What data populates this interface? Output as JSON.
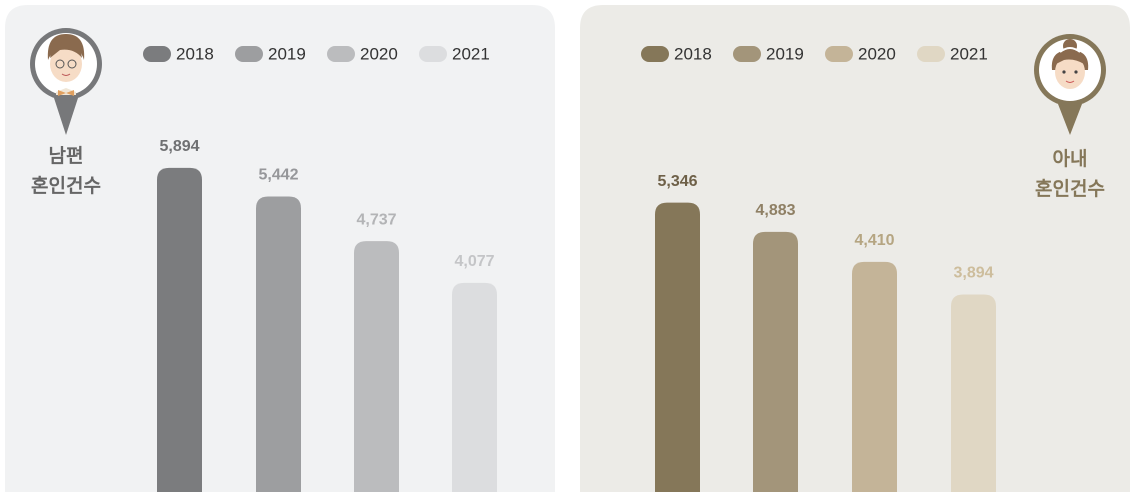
{
  "chart_data": [
    {
      "type": "bar",
      "title": [
        "남편",
        "혼인건수"
      ],
      "series": [
        {
          "name": "2018",
          "color": "#7b7c7e",
          "label_color": "#6f7072",
          "values": [
            5894
          ],
          "value_labels": [
            "5,894"
          ]
        },
        {
          "name": "2019",
          "color": "#9d9ea0",
          "label_color": "#96979a",
          "values": [
            5442
          ],
          "value_labels": [
            "5,442"
          ]
        },
        {
          "name": "2020",
          "color": "#bbbcbe",
          "label_color": "#b3b4b6",
          "values": [
            4737
          ],
          "value_labels": [
            "4,737"
          ]
        },
        {
          "name": "2021",
          "color": "#dcdddf",
          "label_color": "#c4c5c7",
          "values": [
            4077
          ],
          "value_labels": [
            "4,077"
          ]
        }
      ]
    },
    {
      "type": "bar",
      "title": [
        "아내",
        "혼인건수"
      ],
      "series": [
        {
          "name": "2018",
          "color": "#857759",
          "label_color": "#6e6048",
          "values": [
            5346
          ],
          "value_labels": [
            "5,346"
          ]
        },
        {
          "name": "2019",
          "color": "#a3957a",
          "label_color": "#8f8065",
          "values": [
            4883
          ],
          "value_labels": [
            "4,883"
          ]
        },
        {
          "name": "2020",
          "color": "#c4b498",
          "label_color": "#b5a582",
          "values": [
            4410
          ],
          "value_labels": [
            "4,410"
          ]
        },
        {
          "name": "2021",
          "color": "#e0d7c4",
          "label_color": "#cdbd9c",
          "values": [
            3894
          ],
          "value_labels": [
            "3,894"
          ]
        }
      ]
    }
  ]
}
